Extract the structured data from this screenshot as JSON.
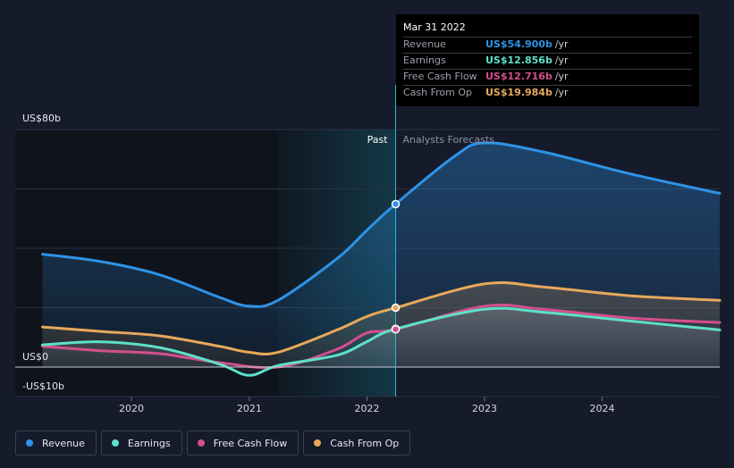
{
  "chart_data": {
    "type": "line",
    "x_ticks": [
      "2020",
      "2021",
      "2022",
      "2023",
      "2024"
    ],
    "y_labels": {
      "top": "US$80b",
      "zero": "US$0",
      "bottom": "-US$10b"
    },
    "ylim": [
      -10,
      80
    ],
    "divider_label_past": "Past",
    "divider_label_forecast": "Analysts Forecasts",
    "divider_date": "2022-03-31",
    "series": [
      {
        "name": "Revenue",
        "color": "#2e93e6",
        "points": [
          [
            "2019-03-31",
            38
          ],
          [
            "2019-09-30",
            35.5
          ],
          [
            "2020-03-31",
            31
          ],
          [
            "2020-09-30",
            23.5
          ],
          [
            "2020-12-31",
            20.5
          ],
          [
            "2021-03-31",
            22.5
          ],
          [
            "2021-09-30",
            36.5
          ],
          [
            "2021-12-31",
            46
          ],
          [
            "2022-03-31",
            54.9
          ],
          [
            "2022-09-30",
            71
          ],
          [
            "2022-12-31",
            75.5
          ],
          [
            "2023-06-30",
            72.5
          ],
          [
            "2024-03-31",
            65
          ],
          [
            "2024-12-31",
            58.5
          ]
        ]
      },
      {
        "name": "Earnings",
        "color": "#5ee0c8",
        "points": [
          [
            "2019-03-31",
            7.5
          ],
          [
            "2019-09-30",
            8.5
          ],
          [
            "2020-03-31",
            6.5
          ],
          [
            "2020-09-30",
            1
          ],
          [
            "2020-12-31",
            -2.8
          ],
          [
            "2021-03-31",
            0.5
          ],
          [
            "2021-09-30",
            4
          ],
          [
            "2021-12-31",
            8.5
          ],
          [
            "2022-03-31",
            12.856
          ],
          [
            "2022-12-31",
            19.5
          ],
          [
            "2023-06-30",
            18.5
          ],
          [
            "2024-03-31",
            15.5
          ],
          [
            "2024-12-31",
            12.5
          ]
        ]
      },
      {
        "name": "Free Cash Flow",
        "color": "#d44f8d",
        "points": [
          [
            "2019-03-31",
            7
          ],
          [
            "2019-09-30",
            5.5
          ],
          [
            "2020-03-31",
            4.5
          ],
          [
            "2020-09-30",
            1.5
          ],
          [
            "2021-03-31",
            0
          ],
          [
            "2021-09-30",
            6
          ],
          [
            "2021-12-31",
            11.5
          ],
          [
            "2022-03-31",
            12.716
          ],
          [
            "2022-12-31",
            20.5
          ],
          [
            "2023-06-30",
            19.5
          ],
          [
            "2024-03-31",
            16.5
          ],
          [
            "2024-12-31",
            15
          ]
        ]
      },
      {
        "name": "Cash From Op",
        "color": "#e8a85c",
        "points": [
          [
            "2019-03-31",
            13.5
          ],
          [
            "2019-09-30",
            12
          ],
          [
            "2020-03-31",
            10.5
          ],
          [
            "2020-09-30",
            7
          ],
          [
            "2020-12-31",
            5
          ],
          [
            "2021-03-31",
            5
          ],
          [
            "2021-09-30",
            12.5
          ],
          [
            "2021-12-31",
            17
          ],
          [
            "2022-03-31",
            19.984
          ],
          [
            "2022-12-31",
            28
          ],
          [
            "2023-06-30",
            27
          ],
          [
            "2024-03-31",
            24
          ],
          [
            "2024-12-31",
            22.5
          ]
        ]
      }
    ]
  },
  "tooltip": {
    "date": "Mar 31 2022",
    "rows": [
      {
        "name": "Revenue",
        "value": "US$54.900b",
        "unit": "/yr",
        "color": "#2e93e6"
      },
      {
        "name": "Earnings",
        "value": "US$12.856b",
        "unit": "/yr",
        "color": "#5ee0c8"
      },
      {
        "name": "Free Cash Flow",
        "value": "US$12.716b",
        "unit": "/yr",
        "color": "#d44f8d"
      },
      {
        "name": "Cash From Op",
        "value": "US$19.984b",
        "unit": "/yr",
        "color": "#e8a85c"
      }
    ]
  },
  "legend": [
    {
      "label": "Revenue",
      "color": "#2e93e6"
    },
    {
      "label": "Earnings",
      "color": "#5ee0c8"
    },
    {
      "label": "Free Cash Flow",
      "color": "#d44f8d"
    },
    {
      "label": "Cash From Op",
      "color": "#e8a85c"
    }
  ]
}
